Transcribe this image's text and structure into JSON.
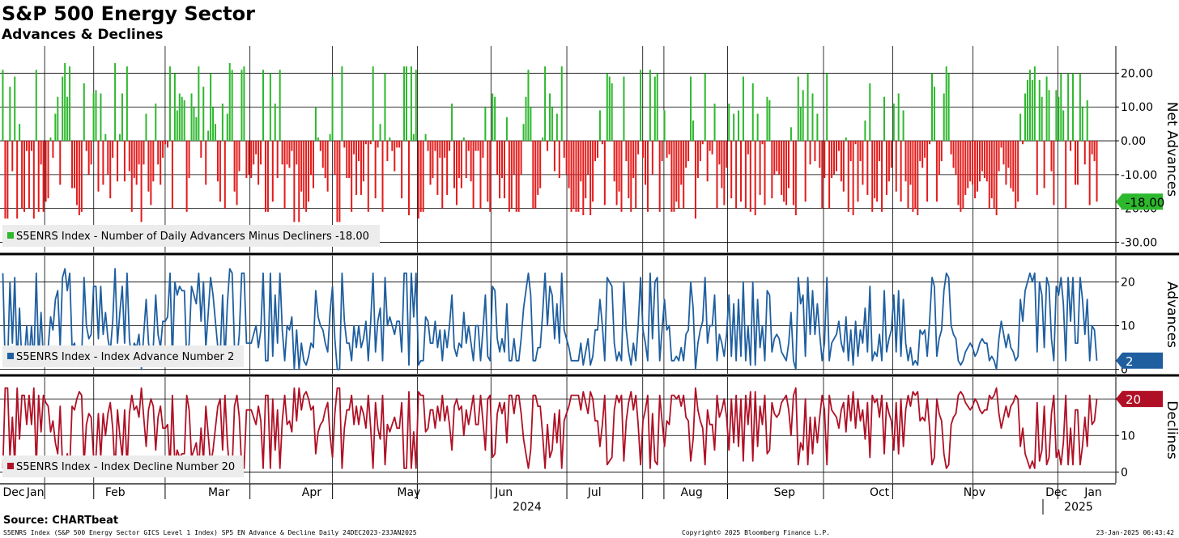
{
  "title": "S&P 500 Energy Sector",
  "subtitle": "Advances & Declines",
  "source": "Source: CHARTbeat",
  "footer": {
    "left": "S5ENRS Index (S&P 500 Energy Sector GICS Level 1 Index) SP5 EN Advance & Decline  Daily 24DEC2023-23JAN2025",
    "center": "Copyright© 2025 Bloomberg Finance L.P.",
    "right": "23-Jan-2025 06:43:42"
  },
  "colors": {
    "positive": "#2db82d",
    "negative": "#e31b1b",
    "advances": "#1f5fa0",
    "declines": "#b01025"
  },
  "chart_data": [
    {
      "type": "bar",
      "panel": "net",
      "ylabel": "Net Advances",
      "ylim": [
        -33,
        28
      ],
      "yticks": [
        20,
        10,
        0,
        -10,
        -20,
        -30
      ],
      "ytick_labels": [
        "20.00",
        "10.00",
        "0.00",
        "-10.00",
        "-20.00",
        "-30.00"
      ],
      "legend": "S5ENRS Index - Number of Daily Advancers Minus Decliners -18.00",
      "last_value_label": "-18.00",
      "values": [
        21,
        -23,
        -23,
        16,
        -9,
        19,
        -23,
        5,
        -20,
        -21,
        -3,
        -20,
        -3,
        -23,
        21,
        -21,
        -7,
        -21,
        -18,
        -17,
        1,
        -5,
        8,
        13,
        -13,
        19,
        23,
        13,
        22,
        -14,
        -14,
        -19,
        -22,
        -21,
        17,
        -3,
        -10,
        -7,
        14,
        15,
        -15,
        14,
        -13,
        2,
        -10,
        -17,
        -5,
        23,
        -12,
        2,
        14,
        -12,
        22,
        -9,
        -21,
        -11,
        -13,
        -7,
        -24,
        -7,
        8,
        -15,
        -19,
        -12,
        11,
        -7,
        -13,
        -5,
        -1,
        -2,
        22,
        -20,
        20,
        9,
        14,
        13,
        12,
        -21,
        -11,
        14,
        10,
        7,
        22,
        -5,
        16,
        -13,
        3,
        20,
        10,
        5,
        -12,
        -18,
        11,
        -20,
        8,
        23,
        21,
        -15,
        -19,
        -9,
        21,
        22,
        -11,
        -10,
        -11,
        -7,
        -4,
        -13,
        -7,
        21,
        -21,
        -21,
        20,
        -18,
        11,
        -11,
        21,
        -7,
        -20,
        -7,
        -8,
        -3,
        -24,
        -7,
        -24,
        -15,
        -20,
        -21,
        -18,
        -10,
        -14,
        10,
        1,
        -3,
        -8,
        -11,
        -15,
        2,
        19,
        -10,
        -24,
        -24,
        22,
        -2,
        -11,
        -11,
        -21,
        -4,
        -16,
        -6,
        -16,
        -12,
        -1,
        -21,
        -1,
        22,
        -17,
        -2,
        5,
        -21,
        20,
        -6,
        1,
        -3,
        -9,
        -2,
        -2,
        -17,
        22,
        22,
        -22,
        22,
        2,
        21,
        -23,
        -21,
        -21,
        2,
        -3,
        -13,
        -11,
        -3,
        -16,
        -5,
        -20,
        -5,
        -16,
        -3,
        11,
        -14,
        -19,
        -11,
        -14,
        1,
        -11,
        -3,
        -12,
        -20,
        -3,
        -3,
        -20,
        -5,
        10,
        -18,
        -21,
        14,
        13,
        -10,
        -17,
        -11,
        -17,
        7,
        -21,
        -20,
        -10,
        -21,
        -21,
        -10,
        5,
        13,
        21,
        10,
        -20,
        -20,
        -16,
        -14,
        1,
        22,
        -3,
        14,
        10,
        -9,
        8,
        -11,
        22,
        -5,
        -10,
        -14,
        -21,
        -20,
        -21,
        -21,
        -12,
        -22,
        -17,
        -10,
        -22,
        -18,
        -6,
        -5,
        9,
        -1,
        -19,
        20,
        19,
        17,
        -12,
        -19,
        -15,
        -21,
        19,
        -6,
        -17,
        -21,
        -11,
        -20,
        -4,
        21,
        -5,
        -13,
        -21,
        21,
        -10,
        19,
        20,
        -21,
        -6,
        9,
        -5,
        -4,
        -21,
        -21,
        -18,
        -20,
        -13,
        -20,
        -8,
        -6,
        19,
        6,
        -23,
        -11,
        -6,
        -1,
        20,
        -12,
        -3,
        -4,
        11,
        -20,
        -7,
        -14,
        -19,
        -8,
        11,
        -17,
        8,
        -20,
        9,
        -18,
        19,
        -20,
        -4,
        -21,
        17,
        -22,
        8,
        -16,
        -1,
        -19,
        13,
        12,
        -17,
        -10,
        -9,
        -10,
        -16,
        -18,
        -19,
        -14,
        4,
        -19,
        -22,
        19,
        10,
        15,
        -18,
        20,
        -7,
        14,
        -6,
        8,
        -8,
        -20,
        -11,
        20,
        -20,
        -11,
        -10,
        -9,
        -3,
        -12,
        -15,
        1,
        -21,
        -6,
        -22,
        -1,
        -18,
        -6,
        -13,
        6,
        -16,
        17,
        -21,
        -17,
        -18,
        -6,
        -21,
        13,
        -16,
        -12,
        -8,
        11,
        -15,
        14,
        -18,
        9,
        -12,
        -20,
        -13,
        -21,
        -20,
        -22,
        -6,
        -8,
        -5,
        -18,
        -1,
        20,
        16,
        -18,
        -10,
        -6,
        14,
        22,
        20,
        -4,
        -8,
        -10,
        -19,
        -21,
        -20,
        -16,
        -14,
        -12,
        -13,
        -17,
        -15,
        -12,
        -9,
        -11,
        -12,
        -20,
        -17,
        -20,
        -22,
        -9,
        -2,
        -7,
        -13,
        -8,
        -14,
        -15,
        -20,
        -18,
        8,
        -1,
        14,
        18,
        21,
        18,
        22,
        -16,
        18,
        13,
        -14,
        19,
        15,
        -9,
        -19,
        15,
        13,
        20,
        9,
        -20,
        20,
        -3,
        20,
        -13,
        -13,
        20,
        10,
        -7,
        12,
        -19,
        -4,
        -6,
        -18
      ]
    },
    {
      "type": "line",
      "panel": "advances",
      "ylabel": "Advances",
      "ylim": [
        -1,
        26
      ],
      "yticks": [
        20,
        10,
        0
      ],
      "ytick_labels": [
        "20",
        "10",
        "0"
      ],
      "legend": "S5ENRS Index - Index Advance Number 2",
      "last_value_label": "2",
      "values": [
        22,
        1,
        1,
        20,
        6,
        21,
        1,
        14,
        1,
        2,
        10,
        2,
        10,
        1,
        22,
        2,
        13,
        2,
        4,
        5,
        12,
        9,
        16,
        18,
        5,
        21,
        23,
        18,
        22,
        5,
        6,
        3,
        1,
        2,
        21,
        10,
        7,
        8,
        19,
        19,
        7,
        19,
        8,
        13,
        7,
        4,
        11,
        23,
        6,
        13,
        19,
        6,
        22,
        7,
        2,
        6,
        5,
        8,
        0,
        8,
        16,
        6,
        3,
        5,
        17,
        8,
        5,
        11,
        11,
        12,
        22,
        2,
        20,
        17,
        19,
        18,
        18,
        2,
        6,
        19,
        17,
        15,
        22,
        11,
        20,
        5,
        13,
        21,
        17,
        11,
        5,
        3,
        17,
        2,
        15,
        23,
        22,
        5,
        2,
        8,
        22,
        22,
        6,
        6,
        6,
        8,
        10,
        5,
        9,
        22,
        2,
        2,
        22,
        3,
        17,
        6,
        22,
        9,
        2,
        10,
        9,
        12,
        0,
        9,
        0,
        6,
        2,
        1,
        3,
        6,
        5,
        18,
        12,
        10,
        9,
        6,
        4,
        13,
        19,
        7,
        0,
        0,
        22,
        11,
        6,
        6,
        2,
        10,
        5,
        10,
        5,
        7,
        11,
        2,
        11,
        22,
        4,
        11,
        14,
        2,
        21,
        10,
        12,
        10,
        8,
        11,
        11,
        4,
        22,
        22,
        1,
        22,
        12,
        22,
        1,
        2,
        2,
        12,
        11,
        6,
        6,
        11,
        5,
        9,
        2,
        9,
        5,
        10,
        17,
        5,
        3,
        6,
        5,
        13,
        6,
        10,
        6,
        2,
        10,
        10,
        2,
        9,
        17,
        3,
        2,
        19,
        18,
        7,
        4,
        7,
        4,
        15,
        2,
        2,
        7,
        2,
        2,
        7,
        14,
        18,
        22,
        17,
        2,
        2,
        5,
        5,
        13,
        22,
        10,
        19,
        17,
        7,
        15,
        6,
        22,
        9,
        7,
        5,
        2,
        2,
        2,
        2,
        6,
        1,
        4,
        7,
        1,
        3,
        9,
        9,
        16,
        10,
        2,
        21,
        20,
        19,
        6,
        2,
        4,
        2,
        20,
        9,
        4,
        1,
        6,
        2,
        10,
        21,
        9,
        6,
        2,
        22,
        7,
        20,
        21,
        2,
        9,
        16,
        9,
        10,
        2,
        2,
        3,
        2,
        5,
        2,
        8,
        9,
        20,
        14,
        0,
        6,
        9,
        11,
        21,
        6,
        10,
        10,
        17,
        2,
        8,
        6,
        3,
        8,
        17,
        3,
        15,
        2,
        16,
        3,
        20,
        2,
        10,
        1,
        20,
        1,
        16,
        5,
        10,
        2,
        18,
        17,
        4,
        7,
        8,
        7,
        4,
        3,
        2,
        6,
        13,
        2,
        0,
        21,
        15,
        17,
        3,
        21,
        8,
        18,
        8,
        15,
        8,
        2,
        6,
        21,
        2,
        6,
        7,
        8,
        11,
        6,
        4,
        12,
        2,
        9,
        1,
        11,
        3,
        9,
        6,
        14,
        4,
        19,
        2,
        4,
        3,
        8,
        2,
        18,
        4,
        7,
        9,
        17,
        4,
        18,
        3,
        16,
        6,
        2,
        5,
        1,
        2,
        1,
        9,
        8,
        9,
        3,
        11,
        21,
        19,
        3,
        7,
        9,
        18,
        22,
        21,
        10,
        8,
        7,
        2,
        1,
        2,
        4,
        5,
        6,
        5,
        3,
        4,
        6,
        7,
        6,
        6,
        2,
        3,
        2,
        0,
        7,
        11,
        8,
        5,
        8,
        5,
        4,
        2,
        3,
        16,
        11,
        18,
        20,
        22,
        20,
        22,
        4,
        20,
        17,
        5,
        21,
        19,
        7,
        2,
        19,
        17,
        21,
        15,
        2,
        21,
        11,
        21,
        6,
        6,
        21,
        16,
        8,
        16,
        2,
        10,
        9,
        2
      ]
    },
    {
      "type": "line",
      "panel": "declines",
      "ylabel": "Declines",
      "ylim": [
        -3,
        26
      ],
      "yticks": [
        20,
        10,
        0
      ],
      "ytick_labels": [
        "20",
        "10",
        "0"
      ],
      "legend": "S5ENRS Index - Index Decline Number 20",
      "last_value_label": "20",
      "values": [
        1,
        23,
        23,
        4,
        15,
        2,
        23,
        9,
        21,
        21,
        13,
        21,
        13,
        23,
        1,
        21,
        11,
        21,
        19,
        18,
        11,
        14,
        8,
        5,
        18,
        2,
        0,
        5,
        1,
        18,
        17,
        20,
        22,
        21,
        2,
        13,
        16,
        15,
        4,
        4,
        16,
        4,
        16,
        10,
        16,
        19,
        12,
        0,
        17,
        10,
        4,
        17,
        1,
        16,
        21,
        17,
        18,
        15,
        23,
        15,
        7,
        17,
        20,
        18,
        6,
        15,
        18,
        12,
        12,
        13,
        1,
        21,
        2,
        6,
        4,
        5,
        5,
        21,
        17,
        4,
        6,
        8,
        1,
        12,
        3,
        18,
        10,
        2,
        6,
        12,
        18,
        20,
        6,
        21,
        8,
        0,
        1,
        18,
        21,
        15,
        1,
        1,
        17,
        17,
        17,
        15,
        13,
        18,
        14,
        1,
        21,
        21,
        1,
        20,
        6,
        17,
        1,
        14,
        21,
        13,
        14,
        11,
        23,
        14,
        23,
        17,
        21,
        22,
        20,
        17,
        18,
        5,
        11,
        13,
        14,
        17,
        19,
        10,
        4,
        16,
        23,
        23,
        1,
        12,
        17,
        17,
        21,
        13,
        18,
        13,
        18,
        16,
        12,
        21,
        12,
        1,
        19,
        12,
        9,
        21,
        2,
        13,
        11,
        13,
        15,
        12,
        12,
        19,
        1,
        1,
        22,
        1,
        11,
        1,
        22,
        21,
        21,
        11,
        12,
        17,
        17,
        12,
        18,
        14,
        21,
        14,
        18,
        13,
        6,
        18,
        20,
        17,
        18,
        10,
        17,
        13,
        17,
        21,
        13,
        13,
        21,
        14,
        6,
        20,
        21,
        4,
        5,
        16,
        19,
        16,
        19,
        8,
        21,
        21,
        16,
        21,
        21,
        16,
        9,
        5,
        1,
        6,
        21,
        21,
        18,
        18,
        10,
        1,
        13,
        4,
        6,
        16,
        8,
        17,
        1,
        14,
        16,
        18,
        21,
        21,
        21,
        21,
        17,
        22,
        19,
        16,
        22,
        20,
        14,
        14,
        7,
        13,
        21,
        2,
        3,
        4,
        17,
        21,
        19,
        21,
        3,
        14,
        19,
        22,
        17,
        21,
        13,
        2,
        14,
        17,
        21,
        1,
        16,
        3,
        2,
        21,
        14,
        7,
        14,
        13,
        21,
        21,
        20,
        21,
        18,
        21,
        15,
        14,
        3,
        9,
        23,
        17,
        14,
        12,
        2,
        17,
        13,
        13,
        6,
        21,
        15,
        17,
        20,
        15,
        6,
        20,
        8,
        21,
        7,
        20,
        3,
        21,
        13,
        22,
        3,
        22,
        7,
        18,
        13,
        21,
        5,
        6,
        19,
        16,
        15,
        16,
        19,
        20,
        21,
        17,
        10,
        21,
        23,
        2,
        8,
        6,
        20,
        2,
        15,
        5,
        15,
        8,
        15,
        21,
        17,
        2,
        21,
        17,
        16,
        15,
        12,
        17,
        19,
        11,
        21,
        14,
        22,
        12,
        20,
        14,
        17,
        9,
        19,
        4,
        21,
        19,
        20,
        15,
        21,
        5,
        19,
        16,
        14,
        6,
        19,
        5,
        20,
        7,
        17,
        21,
        18,
        22,
        21,
        22,
        14,
        15,
        14,
        20,
        12,
        2,
        4,
        20,
        16,
        14,
        5,
        1,
        2,
        13,
        15,
        16,
        21,
        22,
        21,
        19,
        18,
        17,
        18,
        20,
        19,
        17,
        16,
        17,
        17,
        21,
        20,
        21,
        23,
        16,
        12,
        15,
        18,
        15,
        18,
        19,
        21,
        20,
        7,
        12,
        5,
        3,
        1,
        3,
        1,
        19,
        3,
        6,
        18,
        2,
        4,
        16,
        21,
        4,
        6,
        2,
        8,
        21,
        2,
        12,
        2,
        17,
        17,
        2,
        7,
        15,
        7,
        21,
        13,
        14,
        20
      ]
    }
  ],
  "x_axis": {
    "months": [
      {
        "label": "Dec",
        "pos": 0.0
      },
      {
        "label": "Jan",
        "pos": 0.02
      },
      {
        "label": "Feb",
        "pos": 0.094
      },
      {
        "label": "Mar",
        "pos": 0.19
      },
      {
        "label": "Apr",
        "pos": 0.276
      },
      {
        "label": "May",
        "pos": 0.366
      },
      {
        "label": "Jun",
        "pos": 0.454
      },
      {
        "label": "Jul",
        "pos": 0.538
      },
      {
        "label": "Aug",
        "pos": 0.628
      },
      {
        "label": "Sep",
        "pos": 0.714
      },
      {
        "label": "Oct",
        "pos": 0.802
      },
      {
        "label": "Nov",
        "pos": 0.89
      },
      {
        "label": "Dec",
        "pos": 0.966
      },
      {
        "label": "Jan",
        "pos": 1.0
      }
    ],
    "years": [
      "2024",
      "2025"
    ]
  }
}
